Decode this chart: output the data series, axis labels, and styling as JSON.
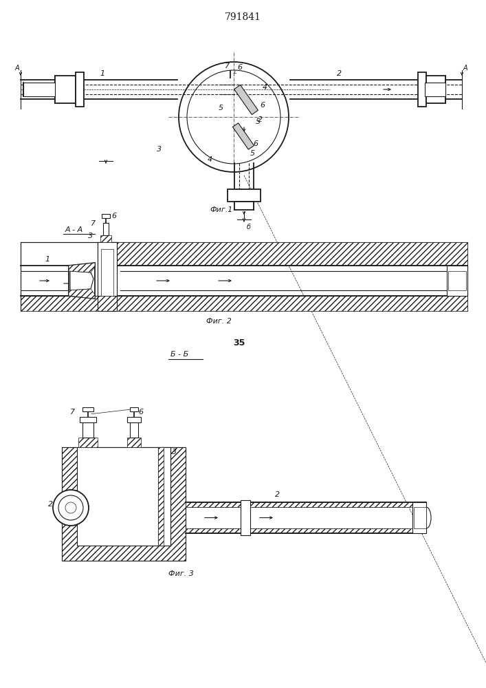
{
  "title": "791841",
  "fig1_caption": "Фиг.1",
  "fig2_caption": "Фиг. 2",
  "fig3_caption": "Фиг. 3",
  "section_aa": "А - А",
  "section_bb": "Б - Б",
  "page_number": "35",
  "bg_color": "#ffffff",
  "line_color": "#1a1a1a"
}
